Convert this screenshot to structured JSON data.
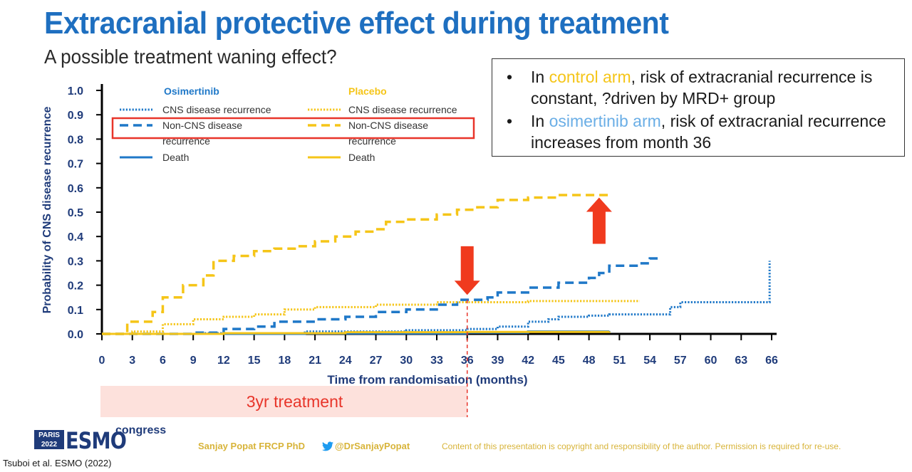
{
  "slide": {
    "title": "Extracranial protective effect during treatment",
    "subtitle": "A possible treatment waning effect?"
  },
  "callout": {
    "bullet_glyph": "•",
    "item1_highlight": "control arm",
    "item1_pre": "In ",
    "item1_post": ", risk of extracranial recurrence is constant, ?driven by MRD+ group",
    "item2_pre": "In ",
    "item2_highlight": "osimertinib arm",
    "item2_post": ", risk of extracranial recurrence increases from month 36"
  },
  "treatment_bar": {
    "label": "3yr treatment",
    "end_month": 36
  },
  "footer": {
    "author": "Sanjay Popat FRCP PhD",
    "twitter": "@DrSanjayPopat",
    "copyright": "Content of this presentation is copyright and responsibility of the author. Permission is required for re-use.",
    "citation": "Tsuboi et al. ESMO (2022)",
    "logo_city_line1": "PARIS",
    "logo_city_line2": "2022",
    "logo_brand": "ESMO",
    "logo_suffix": "congress"
  },
  "colors": {
    "title_blue": "#1e6fc0",
    "osimertinib_blue": "#1f78c8",
    "placebo_yellow": "#f5c518",
    "arrow_red": "#f03a1e",
    "legend_box_red": "#e8352a"
  },
  "chart_data": {
    "type": "line",
    "xlabel": "Time from randomisation (months)",
    "ylabel": "Probability of CNS disease recurrence",
    "xlim": [
      0,
      66
    ],
    "ylim": [
      0,
      1.0
    ],
    "xticks": [
      0,
      3,
      6,
      9,
      12,
      15,
      18,
      21,
      24,
      27,
      30,
      33,
      36,
      39,
      42,
      45,
      48,
      51,
      54,
      57,
      60,
      63,
      66
    ],
    "yticks": [
      "0.0",
      "0.1",
      "0.2",
      "0.3",
      "0.4",
      "0.5",
      "0.6",
      "0.7",
      "0.8",
      "0.9",
      "1.0"
    ],
    "legend": {
      "group_osimertinib": "Osimertinib",
      "group_placebo": "Placebo",
      "entries": [
        {
          "arm": "osimertinib",
          "style": "dotted",
          "label": "CNS disease recurrence"
        },
        {
          "arm": "osimertinib",
          "style": "dashed",
          "label1": "Non-CNS disease",
          "label2": "recurrence"
        },
        {
          "arm": "osimertinib",
          "style": "solid",
          "label": "Death"
        },
        {
          "arm": "placebo",
          "style": "dotted",
          "label": "CNS disease recurrence"
        },
        {
          "arm": "placebo",
          "style": "dashed",
          "label1": "Non-CNS disease",
          "label2": "recurrence"
        },
        {
          "arm": "placebo",
          "style": "solid",
          "label": "Death"
        }
      ]
    },
    "series": [
      {
        "name": "Osimertinib CNS disease recurrence",
        "arm": "osimertinib",
        "style": "dotted",
        "points": [
          [
            0,
            0
          ],
          [
            10,
            0.003
          ],
          [
            20,
            0.01
          ],
          [
            30,
            0.015
          ],
          [
            36,
            0.02
          ],
          [
            39,
            0.03
          ],
          [
            42,
            0.05
          ],
          [
            44,
            0.06
          ],
          [
            45,
            0.07
          ],
          [
            48,
            0.075
          ],
          [
            50,
            0.08
          ],
          [
            55,
            0.08
          ],
          [
            56,
            0.11
          ],
          [
            57,
            0.13
          ],
          [
            60,
            0.13
          ],
          [
            65.8,
            0.13
          ],
          [
            65.8,
            0.3
          ]
        ]
      },
      {
        "name": "Osimertinib Non-CNS disease recurrence",
        "arm": "osimertinib",
        "style": "dashed",
        "points": [
          [
            0,
            0
          ],
          [
            9,
            0.005
          ],
          [
            12,
            0.02
          ],
          [
            15,
            0.03
          ],
          [
            17,
            0.05
          ],
          [
            21,
            0.06
          ],
          [
            24,
            0.07
          ],
          [
            27,
            0.09
          ],
          [
            30,
            0.1
          ],
          [
            33,
            0.12
          ],
          [
            35,
            0.14
          ],
          [
            36,
            0.14
          ],
          [
            38,
            0.15
          ],
          [
            39,
            0.17
          ],
          [
            42,
            0.19
          ],
          [
            45,
            0.21
          ],
          [
            48,
            0.23
          ],
          [
            49,
            0.25
          ],
          [
            50,
            0.28
          ],
          [
            53,
            0.29
          ],
          [
            54,
            0.31
          ],
          [
            55,
            0.31
          ]
        ]
      },
      {
        "name": "Osimertinib Death",
        "arm": "osimertinib",
        "style": "solid",
        "points": [
          [
            0,
            0
          ],
          [
            20,
            0.002
          ],
          [
            36,
            0.005
          ],
          [
            42,
            0.01
          ],
          [
            50,
            0.012
          ]
        ]
      },
      {
        "name": "Placebo CNS disease recurrence",
        "arm": "placebo",
        "style": "dotted",
        "points": [
          [
            0,
            0
          ],
          [
            3,
            0.01
          ],
          [
            6,
            0.04
          ],
          [
            9,
            0.06
          ],
          [
            12,
            0.07
          ],
          [
            15,
            0.08
          ],
          [
            18,
            0.1
          ],
          [
            21,
            0.11
          ],
          [
            27,
            0.12
          ],
          [
            33,
            0.13
          ],
          [
            36,
            0.13
          ],
          [
            42,
            0.135
          ],
          [
            53,
            0.135
          ]
        ]
      },
      {
        "name": "Placebo Non-CNS disease recurrence",
        "arm": "placebo",
        "style": "dashed",
        "points": [
          [
            0,
            0
          ],
          [
            2.5,
            0.05
          ],
          [
            5,
            0.09
          ],
          [
            6,
            0.15
          ],
          [
            8,
            0.2
          ],
          [
            10,
            0.24
          ],
          [
            11,
            0.3
          ],
          [
            13,
            0.32
          ],
          [
            15,
            0.34
          ],
          [
            17,
            0.35
          ],
          [
            19,
            0.36
          ],
          [
            21,
            0.38
          ],
          [
            23,
            0.4
          ],
          [
            25,
            0.42
          ],
          [
            27,
            0.43
          ],
          [
            28,
            0.46
          ],
          [
            30,
            0.47
          ],
          [
            33,
            0.49
          ],
          [
            35,
            0.51
          ],
          [
            37,
            0.52
          ],
          [
            39,
            0.55
          ],
          [
            42,
            0.56
          ],
          [
            45,
            0.57
          ],
          [
            50,
            0.57
          ]
        ]
      },
      {
        "name": "Placebo Death",
        "arm": "placebo",
        "style": "solid",
        "points": [
          [
            0,
            0
          ],
          [
            12,
            0.003
          ],
          [
            24,
            0.007
          ],
          [
            36,
            0.008
          ],
          [
            50,
            0.01
          ]
        ]
      }
    ],
    "annotations": [
      {
        "type": "arrow-down",
        "x": 36,
        "y_tip": 0.16,
        "y_tail": 0.36
      },
      {
        "type": "arrow-up",
        "x": 49,
        "y_tip": 0.56,
        "y_tail": 0.37
      },
      {
        "type": "vline-dashed",
        "x": 36
      }
    ]
  }
}
